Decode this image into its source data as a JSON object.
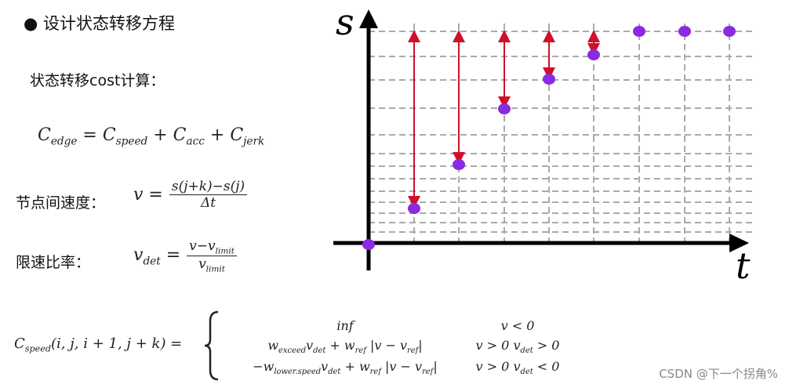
{
  "header": {
    "bullet_title": "设计状态转移方程"
  },
  "sections": {
    "cost_label": "状态转移cost计算：",
    "edge_formula": [
      {
        "t": "C",
        "sub": "edge"
      },
      " = ",
      {
        "t": "C",
        "sub": "speed"
      },
      " + ",
      {
        "t": "C",
        "sub": "acc"
      },
      " + ",
      {
        "t": "C",
        "sub": "jerk"
      }
    ],
    "velocity_label": "节点间速度：",
    "velocity_lhs": [
      "v ="
    ],
    "velocity_num": [
      "s(j+k)−s(j)"
    ],
    "velocity_den": [
      "Δt"
    ],
    "ratio_label": "限速比率：",
    "ratio_lhs": [
      {
        "t": "v",
        "sub": "det"
      },
      " ="
    ],
    "ratio_num": [
      "v−",
      {
        "t": "v",
        "sub": "limit"
      }
    ],
    "ratio_den": [
      {
        "t": "v",
        "sub": "limit"
      }
    ],
    "speed_lhs": [
      {
        "t": "C",
        "sub": "speed"
      },
      "(i, j, i + 1, j + k) ="
    ],
    "cases": [
      {
        "expr": [
          "inf"
        ],
        "cond": [
          "v < 0"
        ]
      },
      {
        "expr": [
          {
            "t": "w",
            "sub": "exceed"
          },
          {
            "t": "v",
            "sub": "det"
          },
          " + ",
          {
            "t": "w",
            "sub": "ref"
          },
          " |v − ",
          {
            "t": "v",
            "sub": "ref"
          },
          "|"
        ],
        "cond": [
          "v > 0 ",
          {
            "t": "v",
            "sub": "det"
          },
          " > 0"
        ]
      },
      {
        "expr": [
          "−",
          {
            "t": "w",
            "sub": "lower.speed"
          },
          {
            "t": "v",
            "sub": "det"
          },
          " + ",
          {
            "t": "w",
            "sub": "ref"
          },
          " |v − ",
          {
            "t": "v",
            "sub": "ref"
          },
          "|"
        ],
        "cond": [
          "v > 0 ",
          {
            "t": "v",
            "sub": "det"
          },
          " < 0"
        ]
      }
    ]
  },
  "diagram": {
    "y_axis": "s",
    "x_axis": "t"
  },
  "watermark": "CSDN @下一个拐角%"
}
